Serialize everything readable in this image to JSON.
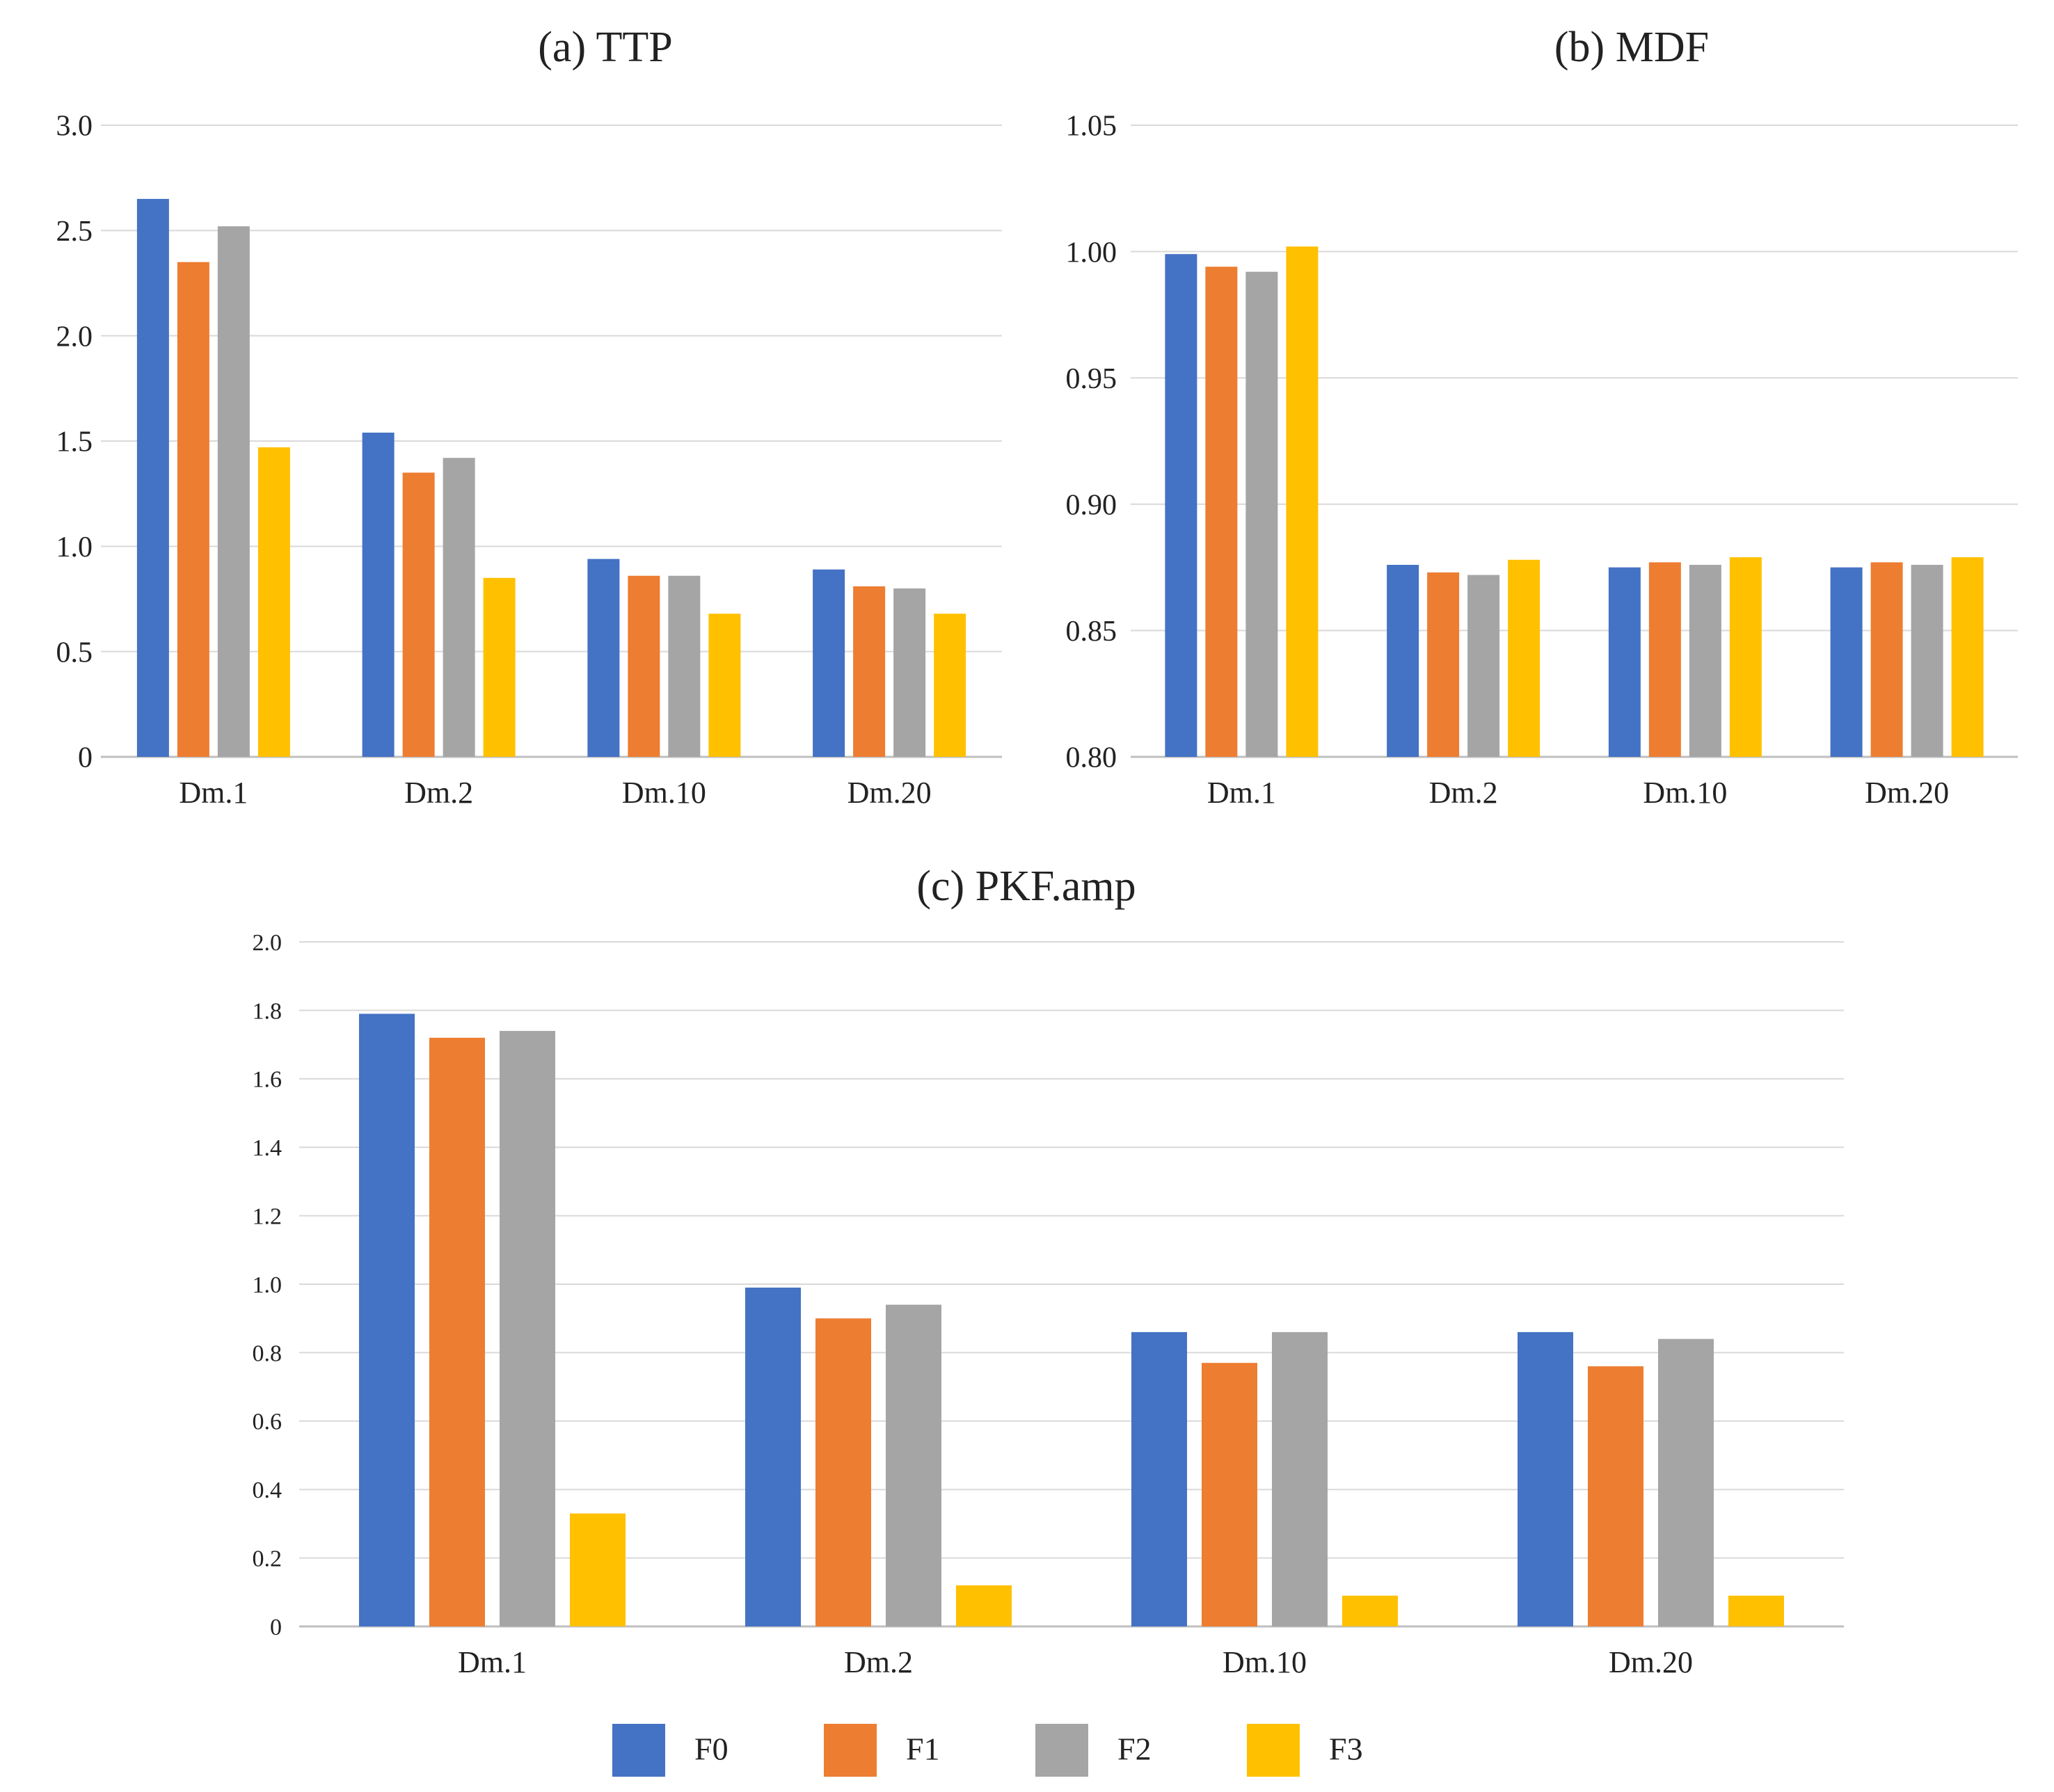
{
  "colors": {
    "F0": "#4472C4",
    "F1": "#ED7D31",
    "F2": "#A5A5A5",
    "F3": "#FFC000",
    "grid": "#D9D9D9",
    "axis": "#BFBFBF"
  },
  "legend": [
    {
      "name": "F0",
      "color": "#4472C4"
    },
    {
      "name": "F1",
      "color": "#ED7D31"
    },
    {
      "name": "F2",
      "color": "#A5A5A5"
    },
    {
      "name": "F3",
      "color": "#FFC000"
    }
  ],
  "chart_data": [
    {
      "type": "bar",
      "title": "(a) TTP",
      "categories": [
        "Dm.1",
        "Dm.2",
        "Dm.10",
        "Dm.20"
      ],
      "yticks": [
        "0",
        "0.5",
        "1.0",
        "1.5",
        "2.0",
        "2.5",
        "3.0"
      ],
      "ylim": [
        0,
        3.0
      ],
      "series": [
        {
          "name": "F0",
          "values": [
            2.65,
            1.54,
            0.94,
            0.89
          ]
        },
        {
          "name": "F1",
          "values": [
            2.35,
            1.35,
            0.86,
            0.81
          ]
        },
        {
          "name": "F2",
          "values": [
            2.52,
            1.42,
            0.86,
            0.8
          ]
        },
        {
          "name": "F3",
          "values": [
            1.47,
            0.85,
            0.68,
            0.68
          ]
        }
      ]
    },
    {
      "type": "bar",
      "title": "(b) MDF",
      "categories": [
        "Dm.1",
        "Dm.2",
        "Dm.10",
        "Dm.20"
      ],
      "yticks": [
        "0.80",
        "0.85",
        "0.90",
        "0.95",
        "1.00",
        "1.05"
      ],
      "ylim": [
        0.8,
        1.05
      ],
      "series": [
        {
          "name": "F0",
          "values": [
            0.999,
            0.876,
            0.875,
            0.875
          ]
        },
        {
          "name": "F1",
          "values": [
            0.994,
            0.873,
            0.877,
            0.877
          ]
        },
        {
          "name": "F2",
          "values": [
            0.992,
            0.872,
            0.876,
            0.876
          ]
        },
        {
          "name": "F3",
          "values": [
            1.002,
            0.878,
            0.879,
            0.879
          ]
        }
      ]
    },
    {
      "type": "bar",
      "title": "(c) PKF.amp",
      "categories": [
        "Dm.1",
        "Dm.2",
        "Dm.10",
        "Dm.20"
      ],
      "yticks": [
        "0",
        "0.2",
        "0.4",
        "0.6",
        "0.8",
        "1.0",
        "1.2",
        "1.4",
        "1.6",
        "1.8",
        "2.0"
      ],
      "ylim": [
        0,
        2.0
      ],
      "series": [
        {
          "name": "F0",
          "values": [
            1.79,
            0.99,
            0.86,
            0.86
          ]
        },
        {
          "name": "F1",
          "values": [
            1.72,
            0.9,
            0.77,
            0.76
          ]
        },
        {
          "name": "F2",
          "values": [
            1.74,
            0.94,
            0.86,
            0.84
          ]
        },
        {
          "name": "F3",
          "values": [
            0.33,
            0.12,
            0.09,
            0.09
          ]
        }
      ]
    }
  ]
}
